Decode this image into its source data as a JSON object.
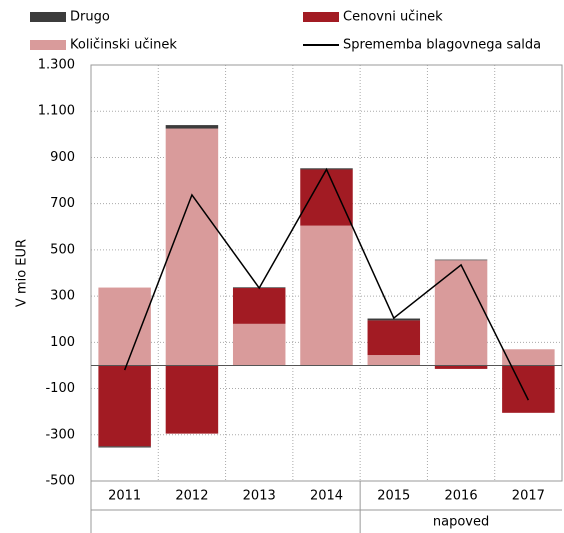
{
  "chart_data": {
    "type": "bar",
    "stacked": true,
    "y_label": "V mio EUR",
    "categories": [
      "2011",
      "2012",
      "2013",
      "2014",
      "2015",
      "2016",
      "2017"
    ],
    "annotation": "napoved",
    "series": [
      {
        "name": "Drugo",
        "color": "#3c3c3c",
        "values": [
          -5,
          15,
          3,
          5,
          8,
          3,
          0
        ]
      },
      {
        "name": "Cenovni učinek",
        "color": "#a21b23",
        "values": [
          -350,
          -295,
          155,
          243,
          150,
          -15,
          -205
        ]
      },
      {
        "name": "Količinski učinek",
        "color": "#d99b9b",
        "values": [
          337,
          1025,
          180,
          605,
          45,
          455,
          70
        ]
      },
      {
        "name": "Sprememba blagovnega salda",
        "color": "#000000",
        "type": "line",
        "values": [
          -20,
          738,
          335,
          848,
          205,
          435,
          -150
        ]
      }
    ],
    "ylim": [
      -500,
      1300
    ],
    "yticks": [
      -500,
      -300,
      -100,
      100,
      300,
      500,
      700,
      900,
      {
        "value": 1100,
        "label": "1.100"
      },
      {
        "value": 1300,
        "label": "1.300"
      }
    ],
    "grid": true
  }
}
